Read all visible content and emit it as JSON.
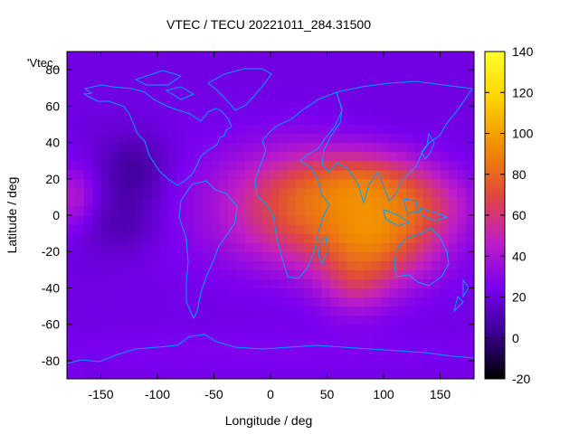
{
  "chart_data": {
    "type": "heatmap",
    "title": "VTEC / TECU 20221011_284.31500",
    "xlabel": "Longitude / deg",
    "ylabel": "Latitude / deg",
    "series_label": "'Vtec_",
    "xlim": [
      -180,
      180
    ],
    "ylim": [
      -90,
      90
    ],
    "x_ticks": [
      -150,
      -100,
      -50,
      0,
      50,
      100,
      150
    ],
    "y_ticks": [
      -80,
      -60,
      -40,
      -20,
      0,
      20,
      40,
      60,
      80
    ],
    "colorbar": {
      "range": [
        -20,
        140
      ],
      "ticks": [
        -20,
        0,
        20,
        40,
        60,
        80,
        100,
        120,
        140
      ],
      "palette": [
        "#000000",
        "#3a0091",
        "#7a00f0",
        "#c01ec6",
        "#e0483e",
        "#f08a00",
        "#ffd400",
        "#ffff28"
      ]
    },
    "coastline_color": "#00a0ff",
    "field": {
      "background": 22,
      "features": [
        {
          "lon": 20,
          "lat": 5,
          "amp": 48,
          "sx": 45,
          "sy": 22
        },
        {
          "lon": 95,
          "lat": -12,
          "amp": 58,
          "sx": 40,
          "sy": 18
        },
        {
          "lon": 88,
          "lat": 20,
          "amp": 38,
          "sx": 40,
          "sy": 12
        },
        {
          "lon": 75,
          "lat": -38,
          "amp": 22,
          "sx": 22,
          "sy": 12
        },
        {
          "lon": 140,
          "lat": 5,
          "amp": 22,
          "sx": 30,
          "sy": 12
        },
        {
          "lon": -175,
          "lat": 10,
          "amp": 22,
          "sx": 14,
          "sy": 12
        },
        {
          "lon": -120,
          "lat": 25,
          "amp": -18,
          "sx": 22,
          "sy": 14
        },
        {
          "lon": -130,
          "lat": -5,
          "amp": -12,
          "sx": 25,
          "sy": 12
        },
        {
          "lon": -80,
          "lat": 5,
          "amp": 5,
          "sx": 40,
          "sy": 30
        },
        {
          "lon": 0,
          "lat": -75,
          "amp": 5,
          "sx": 180,
          "sy": 10
        }
      ]
    }
  }
}
